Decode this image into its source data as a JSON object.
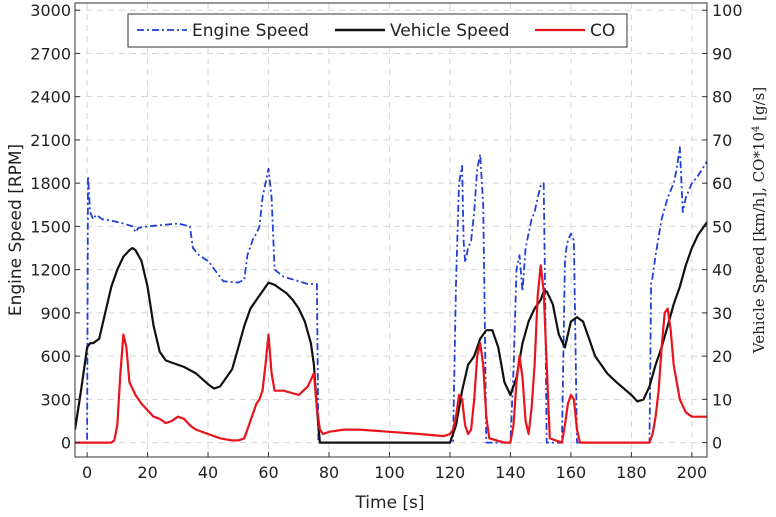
{
  "chart_data": {
    "type": "line",
    "title": "",
    "xlabel": "Time [s]",
    "ylabel_left": "Engine Speed [RPM]",
    "ylabel_right_main": "Vehicle Speed [km/h], CO*10",
    "ylabel_right_sup": "4",
    "ylabel_right_tail": " [g/s]",
    "xlim": [
      -4,
      205
    ],
    "ylim_left": [
      -100,
      3050
    ],
    "ylim_right": [
      -3.33,
      101.67
    ],
    "x_ticks": [
      0,
      20,
      40,
      60,
      80,
      100,
      120,
      140,
      160,
      180,
      200
    ],
    "y_left_ticks": [
      0,
      300,
      600,
      900,
      1200,
      1500,
      1800,
      2100,
      2400,
      2700,
      3000
    ],
    "y_right_ticks": [
      0,
      10,
      20,
      30,
      40,
      50,
      60,
      70,
      80,
      90,
      100
    ],
    "grid": true,
    "legend_position": "top-center",
    "series": [
      {
        "name": "Engine Speed",
        "axis": "left",
        "color": "#1f3fd6",
        "style": "dashdot",
        "x": [
          -4,
          0,
          0.3,
          1,
          2,
          3,
          5,
          8,
          12,
          15,
          16,
          17,
          20,
          25,
          30,
          34,
          35,
          37,
          40,
          45,
          50,
          52,
          53,
          55,
          56,
          57,
          58,
          59,
          60,
          61,
          62,
          65,
          70,
          73,
          76,
          76.5,
          77,
          80,
          100,
          120,
          121,
          122,
          123,
          124,
          124.5,
          125,
          126,
          127,
          128,
          129,
          130,
          131,
          131.5,
          132,
          133,
          138,
          140,
          141,
          142,
          143,
          144,
          145,
          146,
          147,
          148,
          149,
          150,
          151,
          151.5,
          152,
          153,
          157,
          158,
          158.5,
          159,
          160,
          161,
          162,
          163,
          165,
          180,
          186,
          186.5,
          187,
          188,
          190,
          192,
          194,
          195,
          196,
          197,
          198,
          200,
          202,
          205
        ],
        "y": [
          0,
          0,
          1850,
          1600,
          1550,
          1580,
          1550,
          1540,
          1520,
          1500,
          1460,
          1490,
          1500,
          1510,
          1520,
          1500,
          1350,
          1300,
          1260,
          1120,
          1110,
          1130,
          1300,
          1420,
          1450,
          1500,
          1700,
          1800,
          1900,
          1700,
          1200,
          1150,
          1120,
          1100,
          1100,
          0,
          0,
          0,
          0,
          0,
          0,
          1100,
          1800,
          1920,
          1400,
          1250,
          1350,
          1400,
          1600,
          1900,
          2000,
          1650,
          900,
          0,
          0,
          0,
          0,
          500,
          1200,
          1300,
          1050,
          1350,
          1450,
          1550,
          1600,
          1700,
          1780,
          1800,
          1000,
          0,
          0,
          0,
          1250,
          1350,
          1400,
          1450,
          1400,
          0,
          0,
          0,
          0,
          0,
          1100,
          1150,
          1300,
          1550,
          1700,
          1800,
          1900,
          2050,
          1600,
          1700,
          1800,
          1850,
          1950
        ]
      },
      {
        "name": "Vehicle Speed",
        "axis": "right",
        "color": "#111111",
        "style": "solid",
        "x": [
          -4,
          -2,
          0,
          1,
          2,
          4,
          6,
          8,
          10,
          12,
          14,
          15,
          16,
          18,
          20,
          22,
          24,
          26,
          28,
          32,
          36,
          40,
          42,
          44,
          46,
          48,
          50,
          52,
          54,
          56,
          58,
          60,
          62,
          64,
          66,
          68,
          70,
          72,
          74,
          75,
          76,
          77,
          120,
          122,
          124,
          126,
          128,
          130,
          132,
          134,
          136,
          138,
          140,
          142,
          144,
          146,
          148,
          150,
          151,
          152,
          154,
          156,
          158,
          160,
          162,
          164,
          166,
          168,
          170,
          172,
          175,
          180,
          182,
          184,
          186,
          188,
          190,
          192,
          194,
          196,
          198,
          200,
          202,
          205
        ],
        "y": [
          3,
          12,
          22,
          23,
          23,
          24,
          30,
          36,
          40,
          43,
          44.5,
          45,
          44.5,
          42,
          36,
          27,
          21,
          19,
          18.5,
          17.5,
          16,
          13.5,
          12.5,
          13,
          15,
          17,
          22,
          27,
          31,
          33,
          35,
          37,
          36.5,
          35.5,
          34.5,
          33,
          31,
          28,
          23,
          18,
          8,
          0,
          0,
          4,
          12,
          18,
          20,
          24,
          26,
          26,
          22,
          14,
          11,
          15,
          23,
          28,
          31,
          33,
          35,
          35,
          32,
          25,
          22,
          28,
          29,
          28,
          24,
          20,
          18,
          16,
          14,
          11,
          9.5,
          10,
          13,
          18,
          22,
          27,
          32,
          36,
          41,
          45,
          48,
          51
        ]
      },
      {
        "name": "CO",
        "axis": "right",
        "color": "#e8141c",
        "style": "solid",
        "x": [
          -4,
          5,
          8,
          9,
          10,
          11,
          12,
          13,
          14,
          16,
          18,
          20,
          22,
          24,
          26,
          28,
          30,
          32,
          34,
          36,
          40,
          44,
          48,
          50,
          52,
          54,
          56,
          57,
          58,
          59,
          60,
          61,
          62,
          65,
          70,
          73,
          75,
          76,
          77,
          78,
          80,
          85,
          90,
          100,
          110,
          118,
          120,
          121,
          122,
          123,
          124,
          125,
          126,
          127,
          128,
          129,
          130,
          131,
          132,
          133,
          138,
          140,
          141,
          142,
          143,
          144,
          145,
          146,
          147,
          148,
          149,
          150,
          151,
          152,
          153,
          157,
          158,
          159,
          160,
          161,
          162,
          163,
          170,
          180,
          186,
          187,
          188,
          189,
          190,
          191,
          192,
          193,
          194,
          196,
          198,
          200,
          202,
          205
        ],
        "y": [
          0,
          0,
          0,
          0.5,
          4,
          16,
          25,
          22,
          14,
          11,
          9,
          7.5,
          6,
          5.5,
          4.5,
          5,
          6,
          5.5,
          4,
          3,
          2,
          1,
          0.5,
          0.5,
          1,
          5,
          9,
          10,
          12,
          18,
          25,
          16,
          12,
          12,
          11,
          13,
          16,
          8,
          3,
          2,
          2.5,
          3,
          3,
          2.5,
          2,
          1.5,
          2,
          3,
          6,
          11,
          10,
          4,
          2,
          3,
          10,
          20,
          23,
          18,
          6,
          1,
          0,
          0,
          4,
          14,
          20,
          15,
          5,
          2,
          8,
          18,
          34,
          41,
          35,
          18,
          1,
          0,
          4,
          9,
          11,
          10,
          3,
          0,
          0,
          0,
          0,
          2,
          6,
          12,
          22,
          30,
          31,
          26,
          18,
          10,
          7,
          6,
          6,
          6
        ]
      }
    ]
  }
}
